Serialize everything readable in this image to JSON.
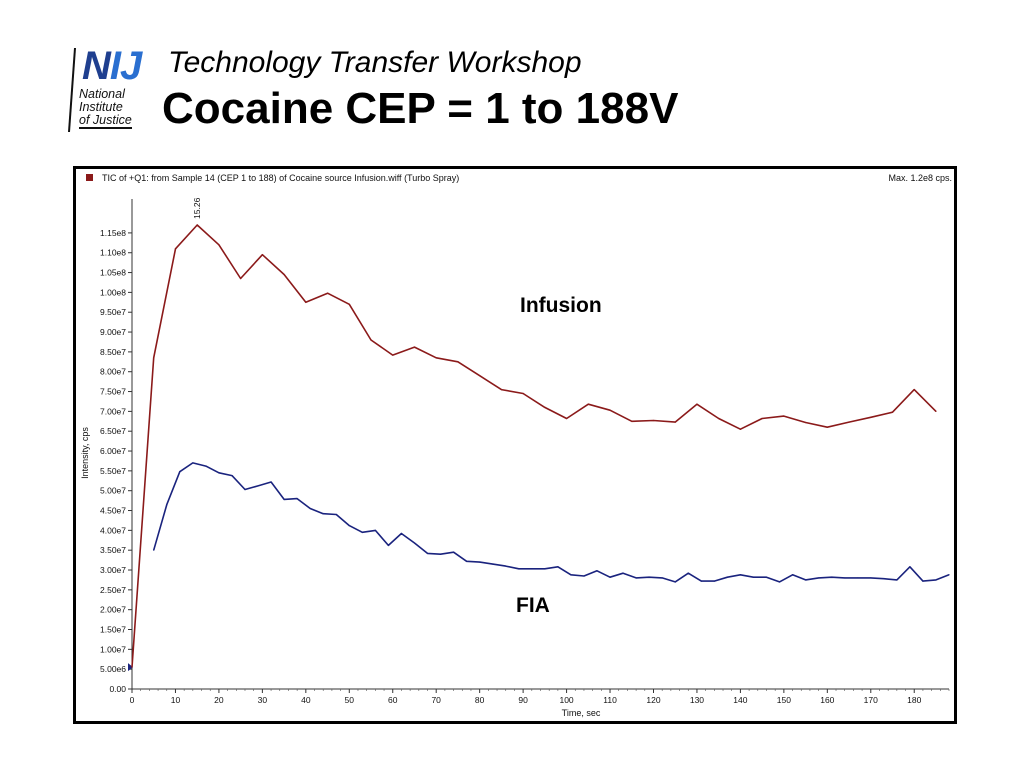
{
  "logo": {
    "nij": "NIJ",
    "lines": [
      "National",
      "Institute",
      "of Justice"
    ]
  },
  "slide": {
    "subtitle": "Technology Transfer Workshop",
    "title": "Cocaine CEP = 1 to 188V"
  },
  "chart_data": {
    "type": "line",
    "header": "TIC of +Q1: from Sample 14 (CEP 1 to 188) of Cocaine source Infusion.wiff (Turbo Spray)",
    "max_label": "Max. 1.2e8 cps.",
    "peak_label": "15.26",
    "xlabel": "Time, sec",
    "ylabel": "Intensity, cps",
    "xlim": [
      0,
      188
    ],
    "ylim": [
      0,
      118000000.0
    ],
    "x_ticks": [
      0,
      10,
      20,
      30,
      40,
      50,
      60,
      70,
      80,
      90,
      100,
      110,
      120,
      130,
      140,
      150,
      160,
      170,
      180
    ],
    "y_ticks": [
      {
        "v": 0,
        "label": "0.00"
      },
      {
        "v": 5000000.0,
        "label": "5.00e6"
      },
      {
        "v": 10000000.0,
        "label": "1.00e7"
      },
      {
        "v": 15000000.0,
        "label": "1.50e7"
      },
      {
        "v": 20000000.0,
        "label": "2.00e7"
      },
      {
        "v": 25000000.0,
        "label": "2.50e7"
      },
      {
        "v": 30000000.0,
        "label": "3.00e7"
      },
      {
        "v": 35000000.0,
        "label": "3.50e7"
      },
      {
        "v": 40000000.0,
        "label": "4.00e7"
      },
      {
        "v": 45000000.0,
        "label": "4.50e7"
      },
      {
        "v": 50000000.0,
        "label": "5.00e7"
      },
      {
        "v": 55000000.0,
        "label": "5.50e7"
      },
      {
        "v": 60000000.0,
        "label": "6.00e7"
      },
      {
        "v": 65000000.0,
        "label": "6.50e7"
      },
      {
        "v": 70000000.0,
        "label": "7.00e7"
      },
      {
        "v": 75000000.0,
        "label": "7.50e7"
      },
      {
        "v": 80000000.0,
        "label": "8.00e7"
      },
      {
        "v": 85000000.0,
        "label": "8.50e7"
      },
      {
        "v": 90000000.0,
        "label": "9.00e7"
      },
      {
        "v": 95000000.0,
        "label": "9.50e7"
      },
      {
        "v": 100000000.0,
        "label": "1.00e8"
      },
      {
        "v": 105000000.0,
        "label": "1.05e8"
      },
      {
        "v": 110000000.0,
        "label": "1.10e8"
      },
      {
        "v": 115000000.0,
        "label": "1.15e8"
      }
    ],
    "series": [
      {
        "name": "Infusion",
        "color": "#8b1a1a",
        "x": [
          0,
          5,
          10,
          15,
          20,
          25,
          30,
          35,
          40,
          45,
          50,
          55,
          60,
          65,
          70,
          75,
          80,
          85,
          90,
          95,
          100,
          105,
          110,
          115,
          120,
          125,
          130,
          135,
          140,
          145,
          150,
          155,
          160,
          165,
          170,
          175,
          180,
          185
        ],
        "y": [
          5500000.0,
          83500000.0,
          111000000.0,
          117000000.0,
          112000000.0,
          103500000.0,
          109500000.0,
          104500000.0,
          97500000.0,
          99800000.0,
          97000000.0,
          88000000.0,
          84200000.0,
          86200000.0,
          83500000.0,
          82500000.0,
          79000000.0,
          75500000.0,
          74500000.0,
          71000000.0,
          68200000.0,
          71800000.0,
          70300000.0,
          67500000.0,
          67700000.0,
          67300000.0,
          71800000.0,
          68200000.0,
          65500000.0,
          68200000.0,
          68800000.0,
          67200000.0,
          66000000.0,
          67300000.0,
          68500000.0,
          69800000.0,
          75500000.0,
          70000000.0
        ]
      },
      {
        "name": "FIA",
        "color": "#1a237e",
        "x": [
          5,
          8,
          11,
          14,
          17,
          20,
          23,
          26,
          29,
          32,
          35,
          38,
          41,
          44,
          47,
          50,
          53,
          56,
          59,
          62,
          65,
          68,
          71,
          74,
          77,
          80,
          83,
          86,
          89,
          92,
          95,
          98,
          101,
          104,
          107,
          110,
          113,
          116,
          119,
          122,
          125,
          128,
          131,
          134,
          137,
          140,
          143,
          146,
          149,
          152,
          155,
          158,
          161,
          164,
          167,
          170,
          173,
          176,
          179,
          182,
          185,
          188
        ],
        "y": [
          35000000.0,
          46500000.0,
          54800000.0,
          57000000.0,
          56200000.0,
          54500000.0,
          53800000.0,
          50300000.0,
          51200000.0,
          52200000.0,
          47800000.0,
          48000000.0,
          45500000.0,
          44200000.0,
          44000000.0,
          41200000.0,
          39500000.0,
          40000000.0,
          36200000.0,
          39200000.0,
          36800000.0,
          34200000.0,
          34000000.0,
          34500000.0,
          32200000.0,
          32000000.0,
          31500000.0,
          31000000.0,
          30300000.0,
          30300000.0,
          30300000.0,
          30800000.0,
          28800000.0,
          28500000.0,
          29800000.0,
          28200000.0,
          29200000.0,
          28000000.0,
          28200000.0,
          28000000.0,
          27000000.0,
          29200000.0,
          27200000.0,
          27200000.0,
          28200000.0,
          28800000.0,
          28200000.0,
          28200000.0,
          27000000.0,
          28800000.0,
          27500000.0,
          28000000.0,
          28200000.0,
          28000000.0,
          28000000.0,
          28000000.0,
          27800000.0,
          27500000.0,
          30800000.0,
          27200000.0,
          27500000.0,
          28800000.0
        ]
      }
    ],
    "annotations": [
      "Infusion",
      "FIA"
    ]
  }
}
